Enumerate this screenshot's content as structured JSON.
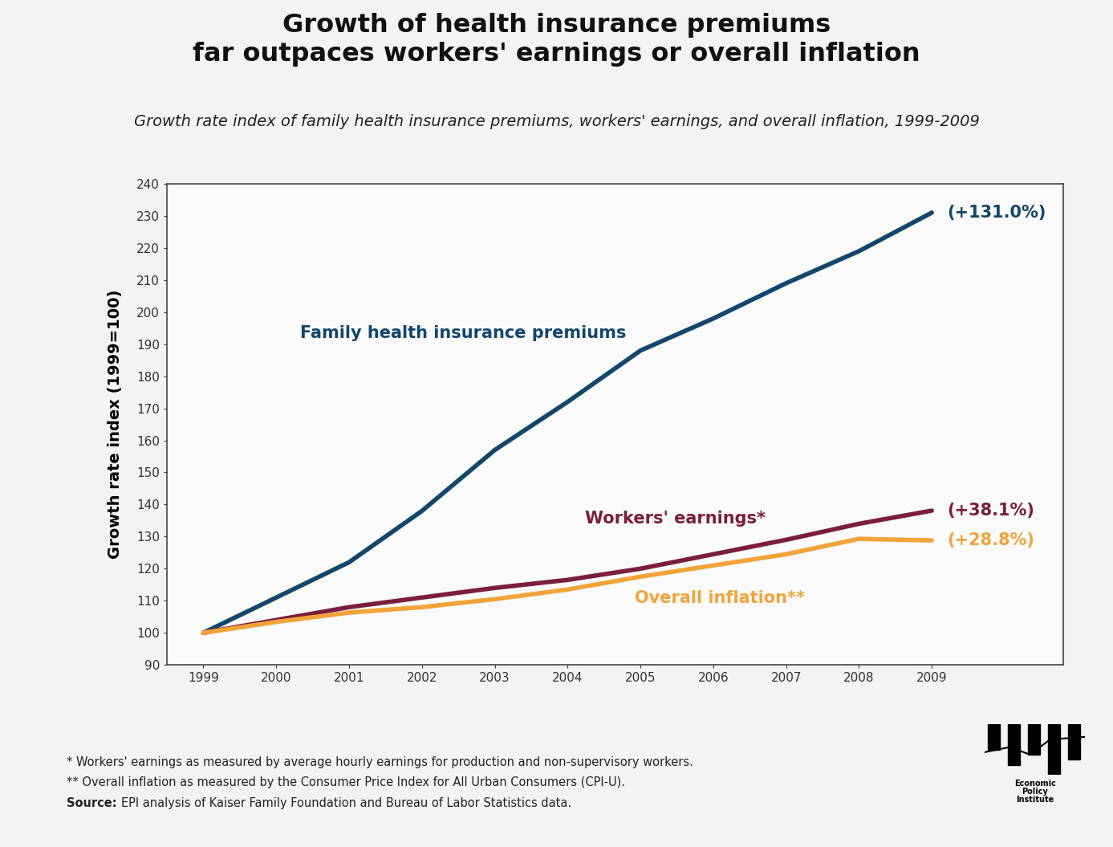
{
  "chart_data": {
    "type": "line",
    "title": "Growth of health insurance premiums\nfar outpaces workers' earnings or overall inflation",
    "subtitle": "Growth rate index of family health insurance premiums, workers' earnings, and overall inflation, 1999-2009",
    "y_label": "Growth rate index (1999=100)",
    "x": [
      1999,
      2000,
      2001,
      2002,
      2003,
      2004,
      2005,
      2006,
      2007,
      2008,
      2009
    ],
    "series": [
      {
        "name": "Family health insurance premiums",
        "color": "#12476b",
        "values": [
          100,
          111,
          122,
          138,
          157,
          172,
          188,
          198,
          209,
          219,
          231
        ],
        "end_label": "(+131.0%)"
      },
      {
        "name": "Workers' earnings*",
        "color": "#7b1e3e",
        "values": [
          100,
          104,
          108,
          111,
          114,
          116.5,
          120,
          124.5,
          129,
          134,
          138.1
        ],
        "end_label": "(+38.1%)"
      },
      {
        "name": "Overall inflation**",
        "color": "#f2a33a",
        "values": [
          100,
          103.4,
          106.3,
          108,
          110.5,
          113.5,
          117.5,
          121,
          124.5,
          129.3,
          128.8
        ],
        "end_label": "(+28.8%)"
      }
    ],
    "xlim": [
      1998.5,
      2010.8
    ],
    "xticks": [
      1999,
      2000,
      2001,
      2002,
      2003,
      2004,
      2005,
      2006,
      2007,
      2008,
      2009
    ],
    "ylim": [
      90,
      240
    ],
    "yticks": [
      90,
      100,
      110,
      120,
      130,
      140,
      150,
      160,
      170,
      180,
      190,
      200,
      210,
      220,
      230,
      240
    ],
    "grid": false,
    "footnotes": [
      "* Workers' earnings as measured by average hourly earnings for production and non-supervisory workers.",
      "** Overall inflation as measured by the Consumer Price Index for All Urban Consumers (CPI-U)."
    ],
    "source_label": "Source:",
    "source": "EPI analysis of Kaiser Family Foundation and Bureau of Labor Statistics data.",
    "logo_text": "Economic\nPolicy\nInstitute"
  }
}
